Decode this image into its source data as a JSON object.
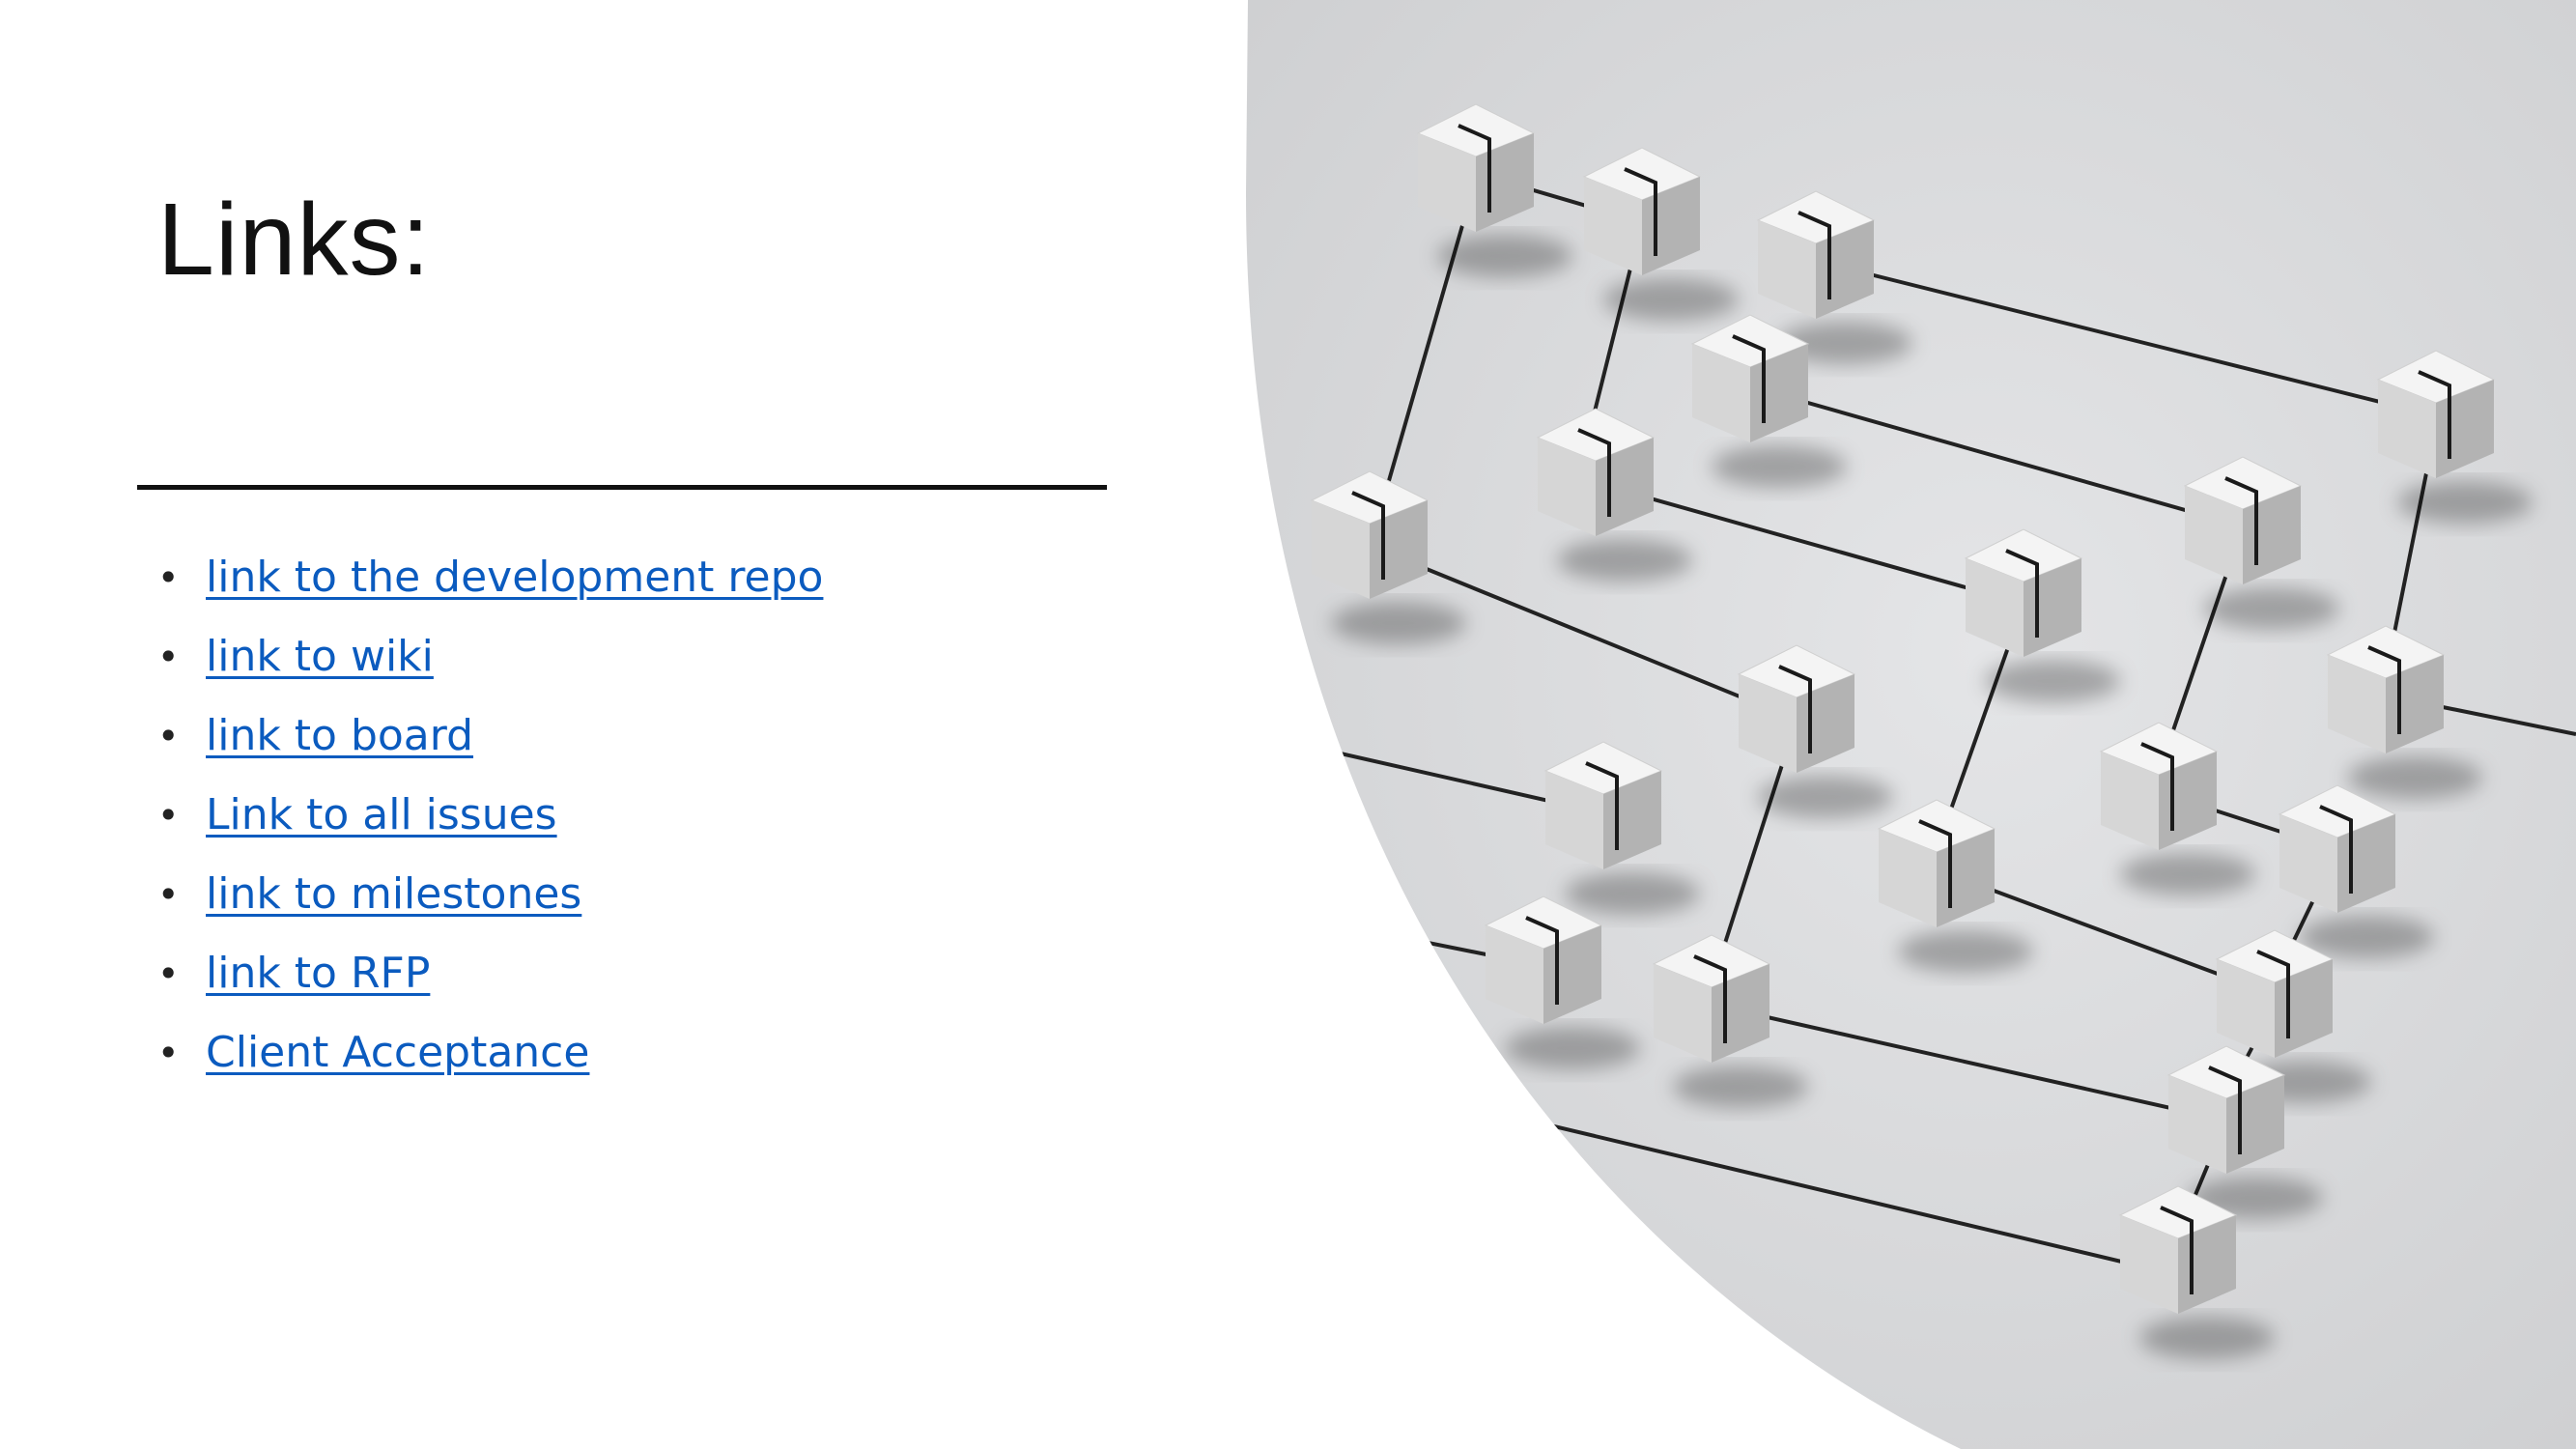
{
  "slide": {
    "title": "Links:",
    "links": [
      {
        "label": "link to the development repo"
      },
      {
        "label": "link to wiki"
      },
      {
        "label": "link to board"
      },
      {
        "label": "Link to all issues"
      },
      {
        "label": "link to milestones"
      },
      {
        "label": "link to RFP"
      },
      {
        "label": "Client Acceptance"
      }
    ],
    "bullet": "•"
  },
  "colors": {
    "background": "#ffffff",
    "link": "#0b5bbf",
    "panel": "#d9dadc",
    "line": "#222222",
    "cube_top": "#f4f4f4",
    "cube_left": "#d6d6d6",
    "cube_right": "#b3b3b3"
  },
  "image": {
    "description_icon": "network-cubes-image"
  }
}
